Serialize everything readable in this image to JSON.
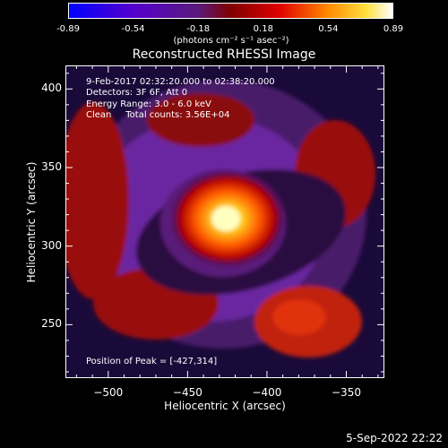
{
  "colorbar": {
    "labels": [
      "-0.89",
      "-0.54",
      "-0.18",
      "0.18",
      "0.54",
      "0.89"
    ],
    "unit": "(photons cm⁻² s⁻¹ asec⁻²)",
    "range": [
      -0.89,
      0.89
    ],
    "colors": [
      "#0000ff",
      "#5a00c8",
      "#7a2a9a",
      "#b30000",
      "#ff6a00",
      "#ffff60",
      "#ffffff"
    ]
  },
  "title": "Reconstructed RHESSI Image",
  "info": {
    "line1": "9-Feb-2017 02:32:20.000 to 02:38:20.000",
    "line2": "Detectors: 3F 6F, Att 0",
    "line3": "Energy Range: 3.0 - 6.0 keV",
    "line4": "Clean     Total counts: 3.56E+04",
    "peak": "Position of Peak = [-427,314]"
  },
  "axes": {
    "xlabel": "Heliocentric X (arcsec)",
    "ylabel": "Heliocentric Y (arcsec)",
    "x_ticks": [
      "-500",
      "-450",
      "-400",
      "-350"
    ],
    "y_ticks": [
      "400",
      "350",
      "300",
      "250"
    ],
    "xlim": [
      -527,
      -326
    ],
    "ylim": [
      216,
      415
    ]
  },
  "footer": {
    "date": "5-Sep-2022 22:22"
  }
}
